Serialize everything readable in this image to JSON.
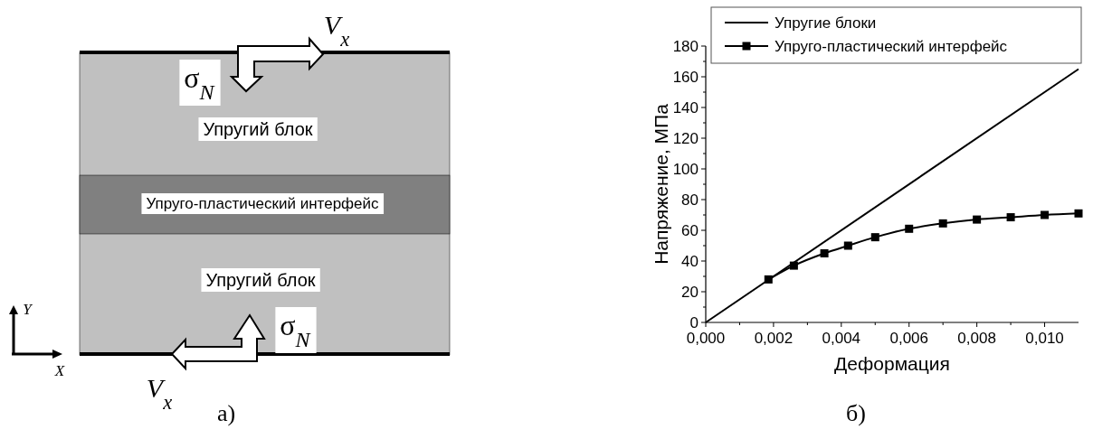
{
  "chart_data": [
    {
      "type": "other",
      "annotations": [
        "V$_{x}$",
        "σ$_{N}$",
        "Упругий блок",
        "Упруго-пластический интерфейс",
        "Упругий блок",
        "σ$_{N}$",
        "V$_{x}$",
        "Y",
        "X",
        "а)"
      ]
    },
    {
      "type": "line",
      "xlabel": "Деформация",
      "ylabel": "Напряжение, МПа",
      "annotations": [
        "б)"
      ],
      "xlim": [
        0,
        0.011
      ],
      "xticks": [
        {
          "value": 0,
          "label": "0,000"
        },
        {
          "value": 0.002,
          "label": "0,002"
        },
        {
          "value": 0.004,
          "label": "0,004"
        },
        {
          "value": 0.006,
          "label": "0,006"
        },
        {
          "value": 0.008,
          "label": "0,008"
        },
        {
          "value": 0.01,
          "label": "0,010"
        }
      ],
      "ylim": [
        0,
        180
      ],
      "yticks": [
        0,
        20,
        40,
        60,
        80,
        100,
        120,
        140,
        160,
        180
      ],
      "legend": "top",
      "line_style": "solid",
      "series": [
        {
          "name": "Упругие блоки",
          "color": "#000000",
          "x": [
            0,
            0.011
          ],
          "values": [
            0,
            165
          ]
        },
        {
          "name": "Упруго-пластический интерфейс",
          "color": "#000000",
          "marker": "square",
          "x": [
            0.00185,
            0.0026,
            0.0035,
            0.0042,
            0.005,
            0.006,
            0.007,
            0.008,
            0.009,
            0.01,
            0.011
          ],
          "values": [
            28,
            37,
            45,
            50,
            55.5,
            61,
            64.5,
            67,
            68.5,
            70,
            71
          ]
        }
      ]
    }
  ]
}
